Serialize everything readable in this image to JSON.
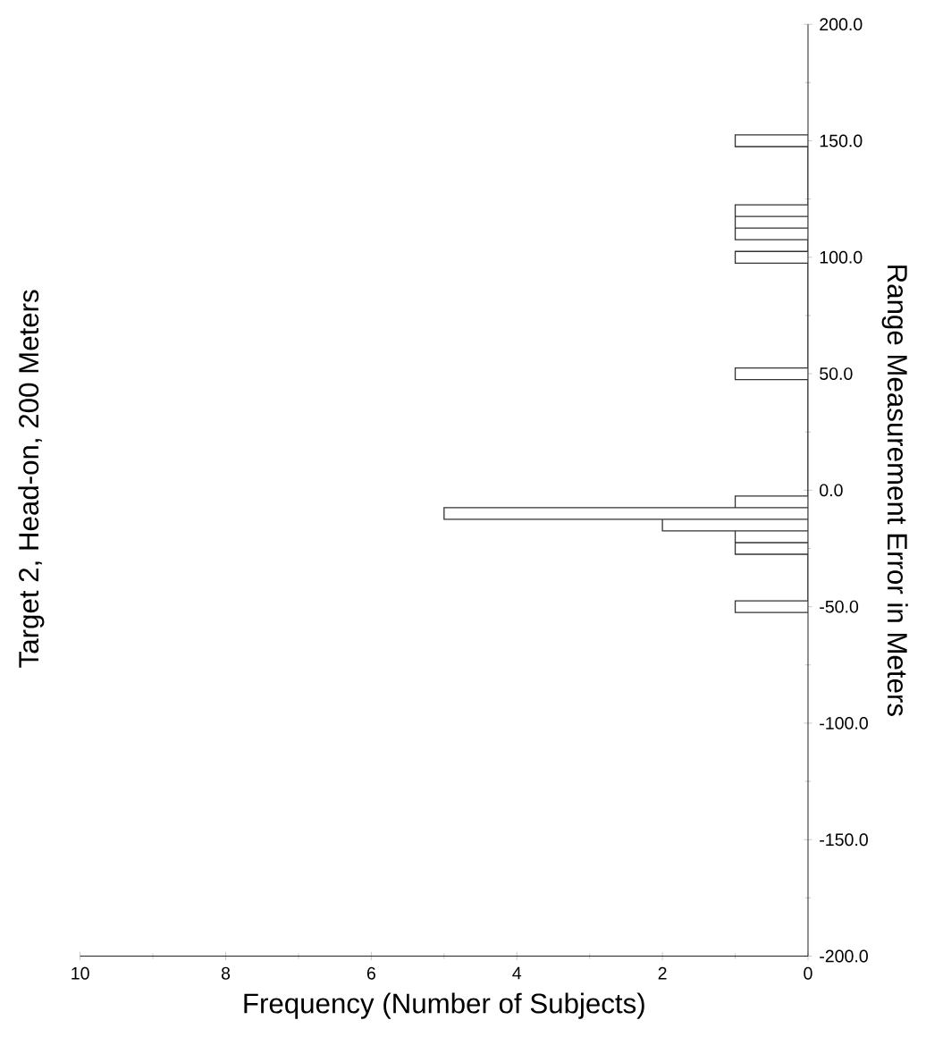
{
  "chart_data": {
    "type": "histogram",
    "orientation": "horizontal",
    "title": "Target 2, Head-on, 200 Meters",
    "xlabel": "Frequency (Number of Subjects)",
    "ylabel": "Range Measurement Error in Meters",
    "bins": [
      -52.5,
      -47.5,
      -42.5,
      -37.5,
      -32.5,
      -27.5,
      -22.5,
      -17.5,
      -12.5,
      -7.5,
      -2.5,
      2.5,
      7.5,
      12.5,
      17.5,
      22.5,
      27.5,
      32.5,
      37.5,
      42.5,
      47.5,
      52.5,
      57.5,
      62.5,
      67.5,
      72.5,
      77.5,
      82.5,
      87.5,
      92.5,
      97.5,
      102.5,
      107.5,
      112.5,
      117.5,
      122.5,
      127.5,
      132.5,
      137.5,
      142.5,
      147.5,
      152.5
    ],
    "values": [
      1,
      0,
      0,
      0,
      0,
      1,
      1,
      2,
      5,
      1,
      0,
      0,
      0,
      0,
      0,
      0,
      0,
      0,
      0,
      0,
      1,
      0,
      0,
      0,
      0,
      0,
      0,
      0,
      0,
      0,
      1,
      0,
      1,
      1,
      1,
      0,
      0,
      0,
      0,
      0,
      1
    ],
    "color": "#ffffff",
    "xlim": [
      10,
      0
    ],
    "xticks": [
      0,
      2,
      4,
      6,
      8,
      10
    ],
    "ylim": [
      -200,
      200
    ],
    "yticks": [
      {
        "value": -200,
        "label": "-200.0"
      },
      {
        "value": -150,
        "label": "-150.0"
      },
      {
        "value": -100,
        "label": "-100.0"
      },
      {
        "value": -50,
        "label": "-50.0"
      },
      {
        "value": 0,
        "label": "0.0"
      },
      {
        "value": 50,
        "label": "50.0"
      },
      {
        "value": 100,
        "label": "100.0"
      },
      {
        "value": 150,
        "label": "150.0"
      },
      {
        "value": 200,
        "label": "200.0"
      }
    ],
    "grid": false
  }
}
